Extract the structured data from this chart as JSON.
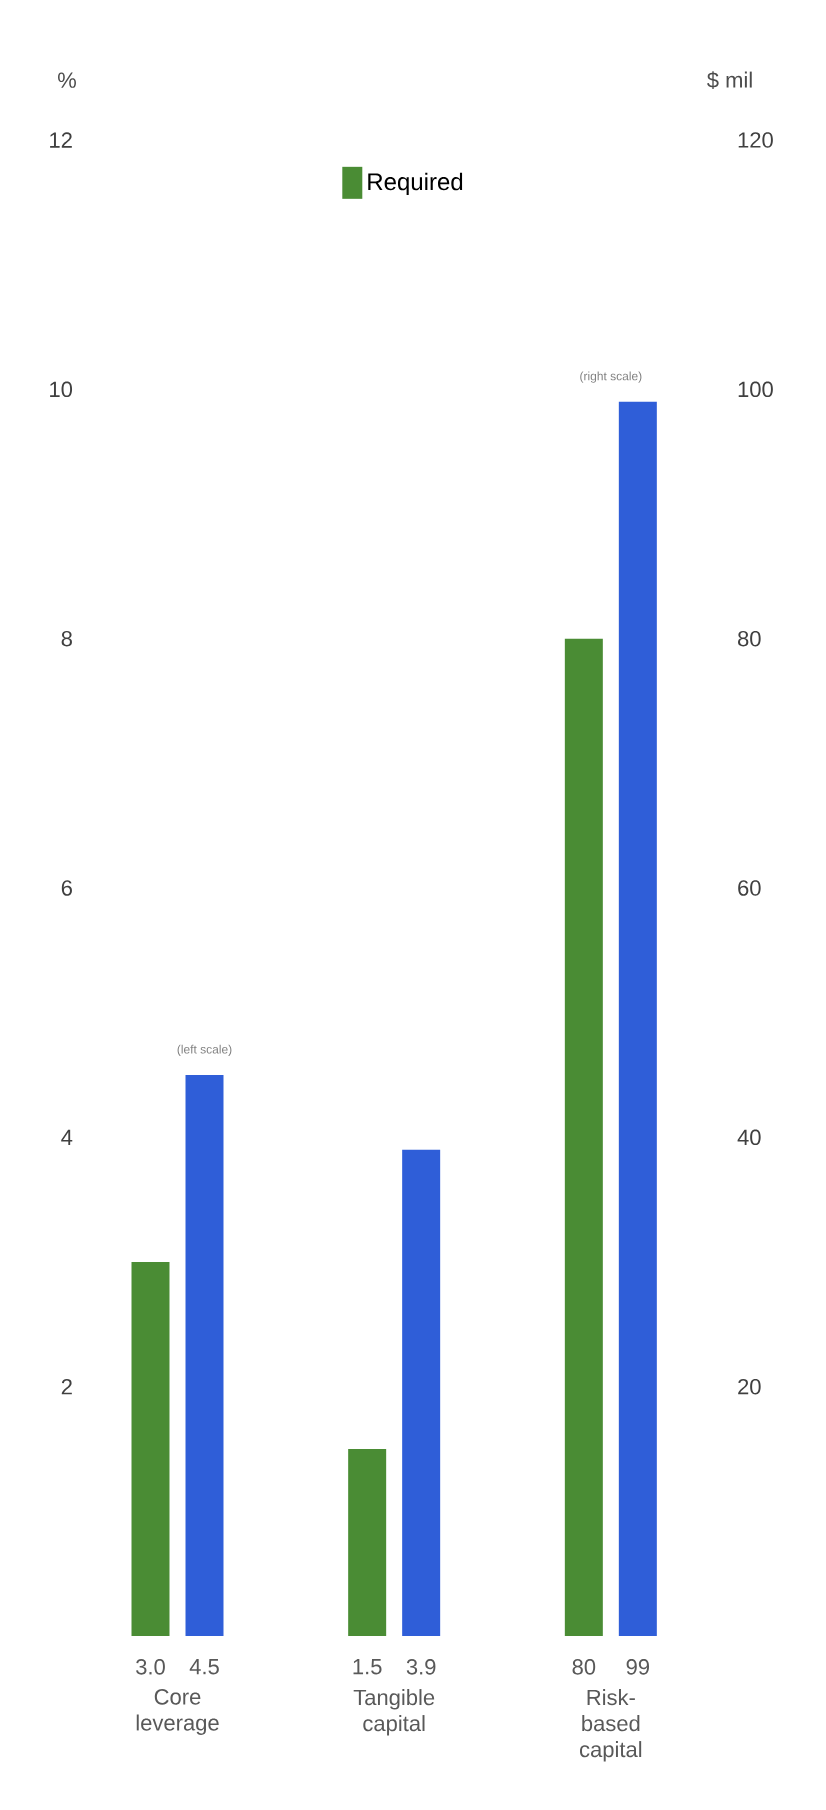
{
  "chart_data": {
    "type": "bar",
    "categories": [
      "Core leverage",
      "Tangible capital",
      "Risk-based capital"
    ],
    "ylabel": "%",
    "y2label": "$ mil",
    "series": [
      {
        "name": "Required",
        "color": "#4a8c34",
        "values": [
          3.0,
          1.5,
          null
        ],
        "value_labels": [
          "3.0",
          "1.5",
          null
        ]
      },
      {
        "color": "#2f5ed8",
        "values": [
          4.5,
          3.9,
          null
        ],
        "value_labels": [
          "4.5",
          "3.9",
          null
        ]
      },
      {
        "color": "#4a8c34",
        "axis": "y2",
        "values": [
          null,
          null,
          80
        ],
        "value_labels": [
          null,
          null,
          "80"
        ]
      },
      {
        "color": "#2f5ed8",
        "axis": "y2",
        "values": [
          null,
          null,
          99
        ],
        "value_labels": [
          null,
          null,
          "99"
        ]
      }
    ],
    "ylim": [
      0,
      12
    ],
    "yticks": [
      2,
      4,
      6,
      8,
      10,
      12
    ],
    "y2lim": [
      0,
      120
    ],
    "y2ticks": [
      20,
      40,
      60,
      80,
      100,
      120
    ],
    "annotations": [
      "(left scale)",
      "(right scale)"
    ],
    "legend": "top",
    "grid": false
  }
}
